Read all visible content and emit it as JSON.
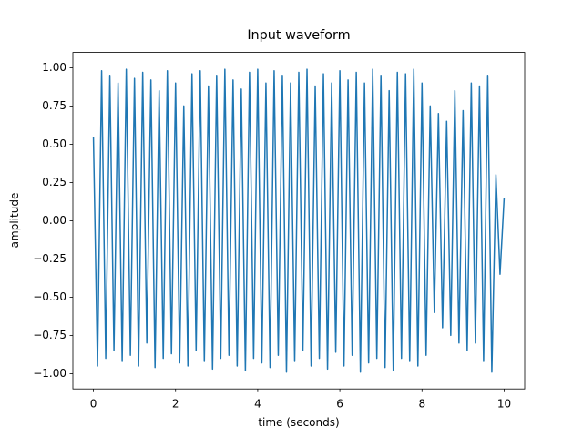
{
  "chart_data": {
    "type": "line",
    "title": "Input waveform",
    "x_label": "time (seconds)",
    "y_label": "amplitude",
    "x": [
      0,
      0.1,
      0.2,
      0.3,
      0.4,
      0.5,
      0.6,
      0.7,
      0.8,
      0.9,
      1.0,
      1.1,
      1.2,
      1.3,
      1.4,
      1.5,
      1.6,
      1.7,
      1.8,
      1.9,
      2.0,
      2.1,
      2.2,
      2.3,
      2.4,
      2.5,
      2.6,
      2.7,
      2.8,
      2.9,
      3.0,
      3.1,
      3.2,
      3.3,
      3.4,
      3.5,
      3.6,
      3.7,
      3.8,
      3.9,
      4.0,
      4.1,
      4.2,
      4.3,
      4.4,
      4.5,
      4.6,
      4.7,
      4.8,
      4.9,
      5.0,
      5.1,
      5.2,
      5.3,
      5.4,
      5.5,
      5.6,
      5.7,
      5.8,
      5.9,
      6.0,
      6.1,
      6.2,
      6.3,
      6.4,
      6.5,
      6.6,
      6.7,
      6.8,
      6.9,
      7.0,
      7.1,
      7.2,
      7.3,
      7.4,
      7.5,
      7.6,
      7.7,
      7.8,
      7.9,
      8.0,
      8.1,
      8.2,
      8.3,
      8.4,
      8.5,
      8.6,
      8.7,
      8.8,
      8.9,
      9.0,
      9.1,
      9.2,
      9.3,
      9.4,
      9.5,
      9.6,
      9.7,
      9.8,
      9.9,
      10.0
    ],
    "series": [
      {
        "color": "#1f77b4",
        "values": [
          0.55,
          -0.95,
          0.98,
          -0.9,
          0.95,
          -0.85,
          0.9,
          -0.92,
          0.99,
          -0.88,
          0.93,
          -0.95,
          0.97,
          -0.8,
          0.92,
          -0.96,
          0.85,
          -0.9,
          0.98,
          -0.87,
          0.9,
          -0.93,
          0.75,
          -0.95,
          0.96,
          -0.85,
          0.98,
          -0.92,
          0.88,
          -0.97,
          0.95,
          -0.9,
          0.99,
          -0.88,
          0.92,
          -0.95,
          0.86,
          -0.98,
          0.97,
          -0.9,
          0.99,
          -0.93,
          0.9,
          -0.96,
          0.98,
          -0.88,
          0.95,
          -0.99,
          0.9,
          -0.92,
          0.97,
          -0.85,
          0.99,
          -0.95,
          0.88,
          -0.9,
          0.96,
          -0.97,
          0.9,
          -0.86,
          0.98,
          -0.95,
          0.92,
          -0.88,
          0.97,
          -0.99,
          0.9,
          -0.93,
          0.99,
          -0.9,
          0.95,
          -0.96,
          0.85,
          -0.98,
          0.97,
          -0.9,
          0.96,
          -0.92,
          0.99,
          -0.95,
          0.9,
          -0.88,
          0.75,
          -0.6,
          0.7,
          -0.7,
          0.65,
          -0.75,
          0.85,
          -0.8,
          0.72,
          -0.85,
          0.9,
          -0.8,
          0.88,
          -0.92,
          0.95,
          -0.99,
          0.3,
          -0.35,
          0.15
        ]
      }
    ],
    "xlim": [
      -0.5,
      10.5
    ],
    "xticks": [
      0,
      2,
      4,
      6,
      8,
      10
    ],
    "ylim": [
      -1.1,
      1.1
    ],
    "yticks": [
      {
        "value": -1,
        "label": "−1.00"
      },
      {
        "value": -0.75,
        "label": "−0.75"
      },
      {
        "value": -0.5,
        "label": "−0.50"
      },
      {
        "value": -0.25,
        "label": "−0.25"
      },
      {
        "value": 0,
        "label": "0.00"
      },
      {
        "value": 0.25,
        "label": "0.25"
      },
      {
        "value": 0.5,
        "label": "0.50"
      },
      {
        "value": 0.75,
        "label": "0.75"
      },
      {
        "value": 1,
        "label": "1.00"
      }
    ]
  }
}
